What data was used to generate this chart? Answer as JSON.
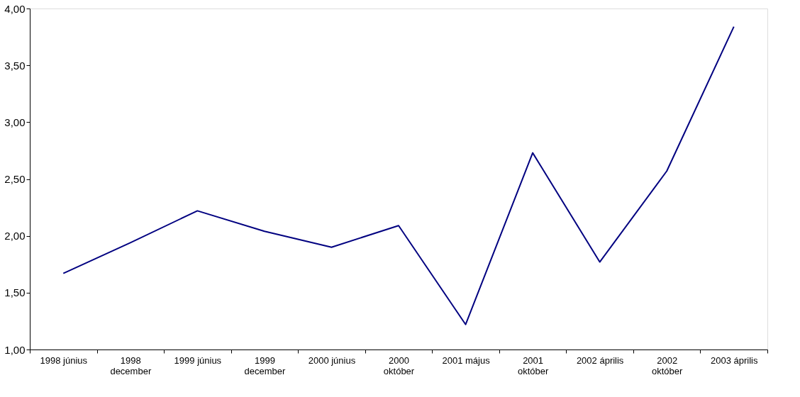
{
  "chart_data": {
    "type": "line",
    "categories": [
      "1998 június",
      "1998\ndecember",
      "1999 június",
      "1999\ndecember",
      "2000 június",
      "2000\noktóber",
      "2001 május",
      "2001\noktóber",
      "2002 április",
      "2002\noktóber",
      "2003 április"
    ],
    "series": [
      {
        "color": "#000080",
        "values": [
          1.67,
          1.94,
          2.22,
          2.04,
          1.9,
          2.09,
          1.22,
          2.73,
          1.77,
          2.57,
          3.84
        ]
      }
    ],
    "ylim": [
      1,
      4
    ],
    "yticks": [
      {
        "value": 1,
        "label": "1,00"
      },
      {
        "value": 1.5,
        "label": "1,50"
      },
      {
        "value": 2,
        "label": "2,00"
      },
      {
        "value": 2.5,
        "label": "2,50"
      },
      {
        "value": 3,
        "label": "3,00"
      },
      {
        "value": 3.5,
        "label": "3,50"
      },
      {
        "value": 4,
        "label": "4,00"
      }
    ],
    "grid": false,
    "legend": false,
    "marker": "none",
    "line_style": "solid"
  }
}
